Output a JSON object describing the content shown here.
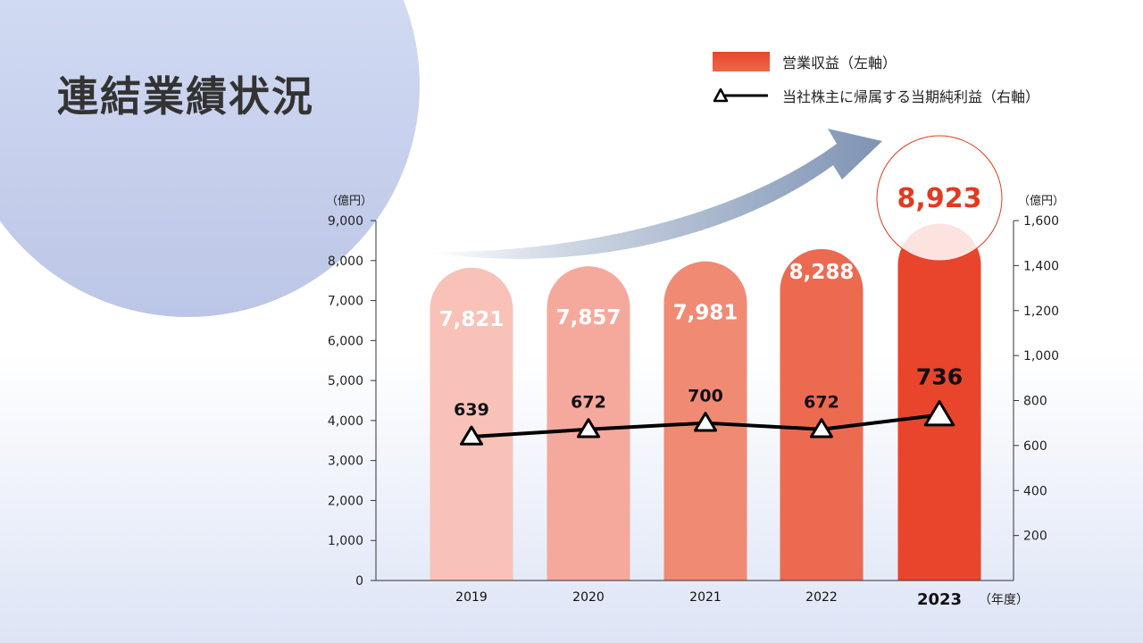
{
  "page": {
    "title": "連結業績状況"
  },
  "colors": {
    "bar_gradient": [
      "#f8c2b8",
      "#f5a99d",
      "#f08a73",
      "#ec6a50",
      "#e8452c"
    ],
    "line": "#000000",
    "highlight": "#e23b1f",
    "arrow": "#7e94b4"
  },
  "chart_data": {
    "type": "bar",
    "categories": [
      "2019",
      "2020",
      "2021",
      "2022",
      "2023"
    ],
    "series": [
      {
        "name": "営業収益（左軸）",
        "type": "bar",
        "axis": "left",
        "values": [
          7821,
          7857,
          7981,
          8288,
          8923
        ],
        "labels": [
          "7,821",
          "7,857",
          "7,981",
          "8,288",
          "8,923"
        ]
      },
      {
        "name": "当社株主に帰属する当期純利益（右軸）",
        "type": "line",
        "axis": "right",
        "marker": "triangle",
        "values": [
          639,
          672,
          700,
          672,
          736
        ],
        "labels": [
          "639",
          "672",
          "700",
          "672",
          "736"
        ]
      }
    ],
    "y_left": {
      "unit": "（億円）",
      "lim": [
        0,
        9000
      ],
      "ticks": [
        0,
        1000,
        2000,
        3000,
        4000,
        5000,
        6000,
        7000,
        8000,
        9000
      ],
      "tick_labels": [
        "0",
        "1,000",
        "2,000",
        "3,000",
        "4,000",
        "5,000",
        "6,000",
        "7,000",
        "8,000",
        "9,000"
      ]
    },
    "y_right": {
      "unit": "（億円）",
      "lim": [
        0,
        1600
      ],
      "ticks": [
        200,
        400,
        600,
        800,
        1000,
        1200,
        1400,
        1600
      ],
      "tick_labels": [
        "200",
        "400",
        "600",
        "800",
        "1,000",
        "1,200",
        "1,400",
        "1,600"
      ]
    },
    "x_unit": "（年度）",
    "highlight_category": "2023",
    "legend_position": "top-right",
    "grid": false
  }
}
